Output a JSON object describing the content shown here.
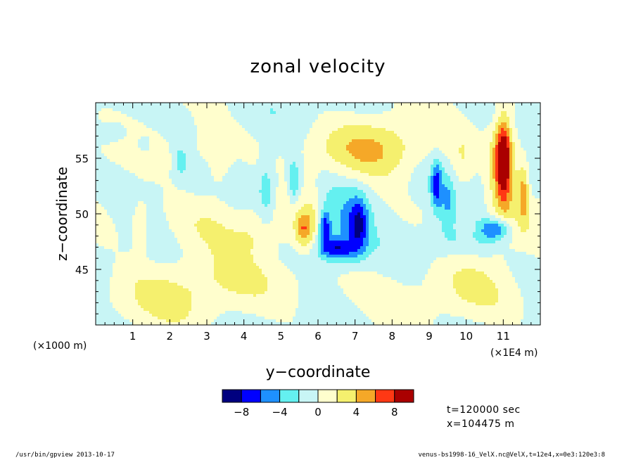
{
  "chart_data": {
    "type": "heatmap",
    "title": "zonal velocity",
    "xlabel": "y−coordinate",
    "ylabel": "z−coordinate",
    "x_unit_left": "(×1000 m)",
    "x_unit_right": "(×1E4 m)",
    "xlim": [
      0,
      12
    ],
    "ylim": [
      40,
      60
    ],
    "xticks": [
      1,
      2,
      3,
      4,
      5,
      6,
      7,
      8,
      9,
      10,
      11
    ],
    "yticks": [
      45,
      50,
      55
    ],
    "background_level": "light cyan / cream (±1)",
    "features": [
      {
        "x": 11.0,
        "z": 55.0,
        "value": 9,
        "sx": 0.14,
        "sz": 2.4
      },
      {
        "x": 11.0,
        "z": 54.0,
        "value": 4.5,
        "sx": 0.3,
        "sz": 3.6
      },
      {
        "x": 11.55,
        "z": 52.0,
        "value": 4.5,
        "sx": 0.1,
        "sz": 2.0
      },
      {
        "x": 5.6,
        "z": 48.6,
        "value": 5,
        "sx": 0.15,
        "sz": 1.1
      },
      {
        "x": 5.85,
        "z": 50.0,
        "value": 2,
        "sx": 0.15,
        "sz": 2.5
      },
      {
        "x": 7.0,
        "z": 55.6,
        "value": 2.5,
        "sx": 1.1,
        "sz": 1.8
      },
      {
        "x": 6.6,
        "z": 49.0,
        "value": -4,
        "sx": 0.5,
        "sz": 2.4
      },
      {
        "x": 7.1,
        "z": 49.0,
        "value": -6,
        "sx": 0.18,
        "sz": 1.7
      },
      {
        "x": 6.5,
        "z": 46.8,
        "value": -6,
        "sx": 0.35,
        "sz": 0.65
      },
      {
        "x": 6.18,
        "z": 48.7,
        "value": -6,
        "sx": 0.1,
        "sz": 1.0
      },
      {
        "x": 5.35,
        "z": 53.0,
        "value": -4,
        "sx": 0.1,
        "sz": 1.4
      },
      {
        "x": 9.2,
        "z": 52.5,
        "value": -6,
        "sx": 0.1,
        "sz": 1.6
      },
      {
        "x": 9.5,
        "z": 51.0,
        "value": -3,
        "sx": 0.12,
        "sz": 1.4
      },
      {
        "x": 10.8,
        "z": 48.6,
        "value": -6,
        "sx": 0.28,
        "sz": 0.7
      },
      {
        "x": 9.8,
        "z": 47.8,
        "value": -3,
        "sx": 0.6,
        "sz": 1.3
      },
      {
        "x": 4.6,
        "z": 52.0,
        "value": -3,
        "sx": 0.15,
        "sz": 2.0
      },
      {
        "x": 2.3,
        "z": 54.7,
        "value": -3,
        "sx": 0.1,
        "sz": 0.9
      },
      {
        "x": 1.3,
        "z": 56.2,
        "value": -2,
        "sx": 0.15,
        "sz": 0.6
      },
      {
        "x": 0.5,
        "z": 57.2,
        "value": -2,
        "sx": 0.35,
        "sz": 0.7
      },
      {
        "x": 3.3,
        "z": 54.3,
        "value": 2.5,
        "sx": 0.25,
        "sz": 1.8
      },
      {
        "x": 1.2,
        "z": 49.0,
        "value": 2.5,
        "sx": 0.15,
        "sz": 1.8
      },
      {
        "x": 2.9,
        "z": 56.5,
        "value": 2,
        "sx": 0.12,
        "sz": 1.0
      },
      {
        "x": 9.9,
        "z": 54.0,
        "value": 2,
        "sx": 0.2,
        "sz": 2.0
      },
      {
        "x": 10.0,
        "z": 48.5,
        "value": 2,
        "sx": 0.2,
        "sz": 0.8
      },
      {
        "x": 4.3,
        "z": 48.0,
        "value": 1.5,
        "sx": 0.4,
        "sz": 1.4
      },
      {
        "x": 5.0,
        "z": 44.5,
        "value": 1.5,
        "sx": 2.6,
        "sz": 1.6
      },
      {
        "x": 2.0,
        "z": 42.5,
        "value": 1.5,
        "sx": 1.4,
        "sz": 2.2
      },
      {
        "x": 7.8,
        "z": 57.0,
        "value": 1.5,
        "sx": 0.7,
        "sz": 2.5
      },
      {
        "x": 10.2,
        "z": 44.0,
        "value": 1.5,
        "sx": 0.9,
        "sz": 2.5
      },
      {
        "x": 3.0,
        "z": 49.0,
        "value": 1.5,
        "sx": 0.9,
        "sz": 2.5
      }
    ],
    "colorbar": {
      "colors": [
        "#00007f",
        "#0000ff",
        "#1e90ff",
        "#64f0f0",
        "#c8f5f5",
        "#fffecd",
        "#f5f06e",
        "#f5a828",
        "#ff3814",
        "#aa0000"
      ],
      "boundaries": [
        -10,
        -8,
        -6,
        -4,
        -2,
        0,
        2,
        4,
        6,
        8,
        10
      ],
      "labels": [
        "−8",
        "−4",
        "0",
        "4",
        "8"
      ],
      "label_values": [
        -8,
        -4,
        0,
        4,
        8
      ]
    }
  },
  "info": {
    "time": "t=120000 sec",
    "xpos": "x=104475  m"
  },
  "footer": {
    "left": "/usr/bin/gpview  2013-10-17",
    "right": "venus-bs1998-16_VelX.nc@VelX,t=12e4,x=0e3:120e3:8"
  }
}
